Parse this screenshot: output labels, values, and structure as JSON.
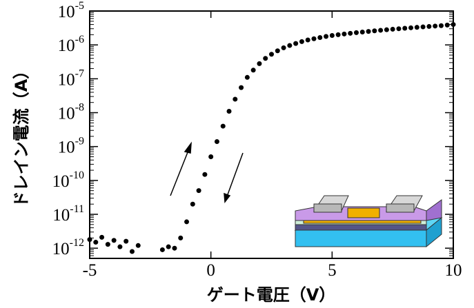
{
  "chart_data": {
    "type": "scatter",
    "xlabel": "ゲート電圧（V）",
    "ylabel": "ドレイン電流（A）",
    "x": [
      -5,
      -4.75,
      -4.5,
      -4.25,
      -4,
      -3.75,
      -3.5,
      -3.25,
      -3,
      -2.75,
      -2.5,
      -2.25,
      -2,
      -1.75,
      -1.5,
      -1.25,
      -1,
      -0.75,
      -0.5,
      -0.25,
      0,
      0.25,
      0.5,
      0.75,
      1,
      1.25,
      1.5,
      1.75,
      2,
      2.25,
      2.5,
      2.75,
      3,
      3.25,
      3.5,
      3.75,
      4,
      4.25,
      4.5,
      4.75,
      5,
      5.25,
      5.5,
      5.75,
      6,
      6.25,
      6.5,
      6.75,
      7,
      7.25,
      7.5,
      7.75,
      8,
      8.25,
      8.5,
      8.75,
      9,
      9.25,
      9.5,
      9.75,
      10
    ],
    "series": [
      {
        "color": "#000000",
        "values": [
          1.8e-12,
          1.5e-12,
          2.1e-12,
          1.3e-12,
          1.7e-12,
          1.1e-12,
          1.6e-12,
          8e-13,
          1.2e-12,
          null,
          null,
          null,
          9e-13,
          1.1e-12,
          1e-12,
          2e-12,
          6e-12,
          2e-11,
          5e-11,
          1.5e-10,
          5e-10,
          1.4e-09,
          4e-09,
          1.1e-08,
          2.5e-08,
          5.5e-08,
          1.1e-07,
          1.8e-07,
          2.8e-07,
          4e-07,
          5.3e-07,
          6.7e-07,
          8.2e-07,
          9.6e-07,
          1.1e-06,
          1.25e-06,
          1.4e-06,
          1.52e-06,
          1.65e-06,
          1.78e-06,
          1.9e-06,
          2e-06,
          2.1e-06,
          2.2e-06,
          2.3e-06,
          2.4e-06,
          2.5e-06,
          2.6e-06,
          2.7e-06,
          2.8e-06,
          2.9e-06,
          3e-06,
          3.1e-06,
          3.2e-06,
          3.3e-06,
          3.4e-06,
          3.5e-06,
          3.6e-06,
          3.7e-06,
          3.85e-06,
          4e-06
        ]
      }
    ],
    "xlim": [
      -5,
      10
    ],
    "xticks": [
      -5,
      0,
      5,
      10
    ],
    "ylim": [
      5e-13,
      1e-05
    ],
    "yscale": "log",
    "yticks": [
      {
        "value": 1e-12,
        "label": "10",
        "sup": "-12"
      },
      {
        "value": 1e-11,
        "label": "10",
        "sup": "-11"
      },
      {
        "value": 1e-10,
        "label": "10",
        "sup": "-10"
      },
      {
        "value": 1e-09,
        "label": "10",
        "sup": "-9"
      },
      {
        "value": 1e-08,
        "label": "10",
        "sup": "-8"
      },
      {
        "value": 1e-07,
        "label": "10",
        "sup": "-7"
      },
      {
        "value": 1e-06,
        "label": "10",
        "sup": "-6"
      },
      {
        "value": 1e-05,
        "label": "10",
        "sup": "-5"
      }
    ]
  }
}
